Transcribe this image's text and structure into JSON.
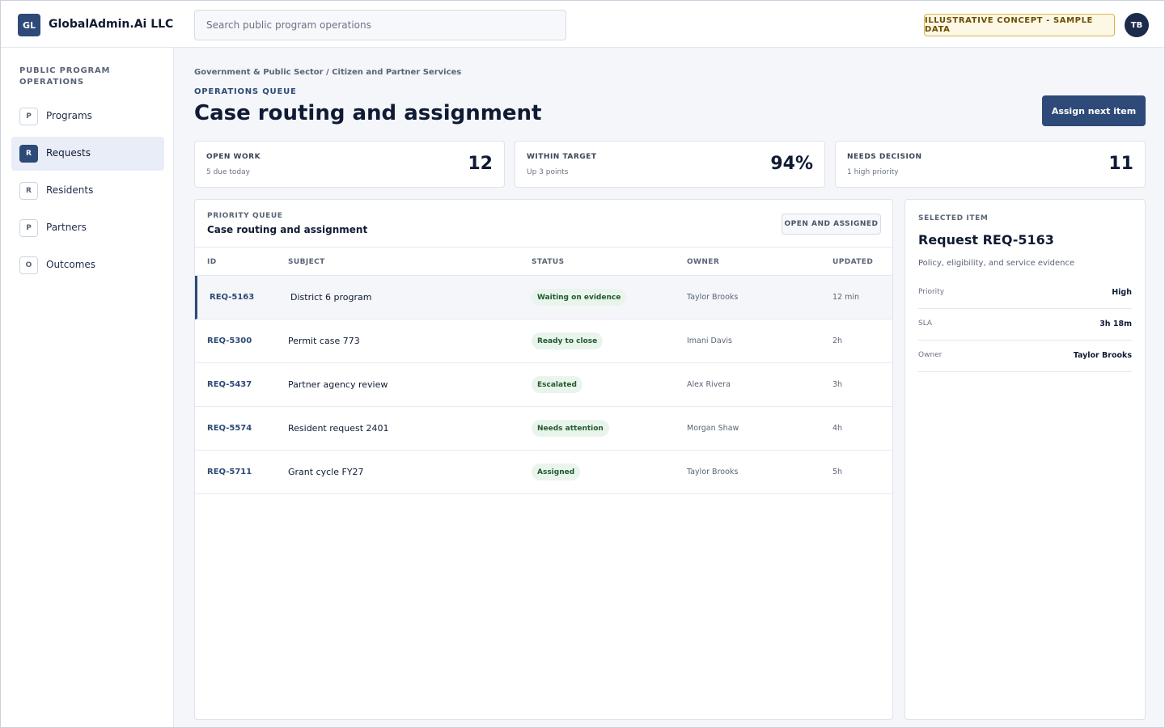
{
  "topbar": {
    "logo_initials": "GL",
    "company": "GlobalAdmin.Ai LLC",
    "search_placeholder": "Search public program operations",
    "concept_badge": "ILLUSTRATIVE CONCEPT - SAMPLE DATA",
    "avatar_initials": "TB"
  },
  "sidebar": {
    "title": "PUBLIC PROGRAM OPERATIONS",
    "items": [
      {
        "icon": "P",
        "label": "Programs"
      },
      {
        "icon": "R",
        "label": "Requests",
        "active": true
      },
      {
        "icon": "R",
        "label": "Residents"
      },
      {
        "icon": "P",
        "label": "Partners"
      },
      {
        "icon": "O",
        "label": "Outcomes"
      }
    ]
  },
  "header": {
    "breadcrumb": "Government & Public Sector / Citizen and Partner Services",
    "eyebrow": "OPERATIONS QUEUE",
    "title": "Case routing and assignment",
    "primary_action": "Assign next item"
  },
  "kpis": [
    {
      "label": "OPEN WORK",
      "sub": "5 due today",
      "value": "12"
    },
    {
      "label": "WITHIN TARGET",
      "sub": "Up 3 points",
      "value": "94%"
    },
    {
      "label": "NEEDS DECISION",
      "sub": "1 high priority",
      "value": "11"
    }
  ],
  "queue": {
    "eyebrow": "PRIORITY QUEUE",
    "title": "Case routing and assignment",
    "filter": "OPEN AND ASSIGNED",
    "columns": {
      "id": "ID",
      "subject": "SUBJECT",
      "status": "STATUS",
      "owner": "OWNER",
      "updated": "UPDATED"
    },
    "rows": [
      {
        "id": "REQ-5163",
        "subject": "District 6 program",
        "status": "Waiting on evidence",
        "owner": "Taylor Brooks",
        "updated": "12 min"
      },
      {
        "id": "REQ-5300",
        "subject": "Permit case 773",
        "status": "Ready to close",
        "owner": "Imani Davis",
        "updated": "2h"
      },
      {
        "id": "REQ-5437",
        "subject": "Partner agency review",
        "status": "Escalated",
        "owner": "Alex Rivera",
        "updated": "3h"
      },
      {
        "id": "REQ-5574",
        "subject": "Resident request 2401",
        "status": "Needs attention",
        "owner": "Morgan Shaw",
        "updated": "4h"
      },
      {
        "id": "REQ-5711",
        "subject": "Grant cycle FY27",
        "status": "Assigned",
        "owner": "Taylor Brooks",
        "updated": "5h"
      }
    ]
  },
  "detail": {
    "eyebrow": "SELECTED ITEM",
    "title": "Request REQ-5163",
    "description": "Policy, eligibility, and service evidence",
    "fields": [
      {
        "key": "Priority",
        "value": "High"
      },
      {
        "key": "SLA",
        "value": "3h 18m"
      },
      {
        "key": "Owner",
        "value": "Taylor Brooks"
      }
    ]
  },
  "colors": {
    "brand": "#2d4a78",
    "status_bg": "#e9f5ec",
    "status_text": "#1f5a2e",
    "badge_border": "#d9b54a"
  }
}
